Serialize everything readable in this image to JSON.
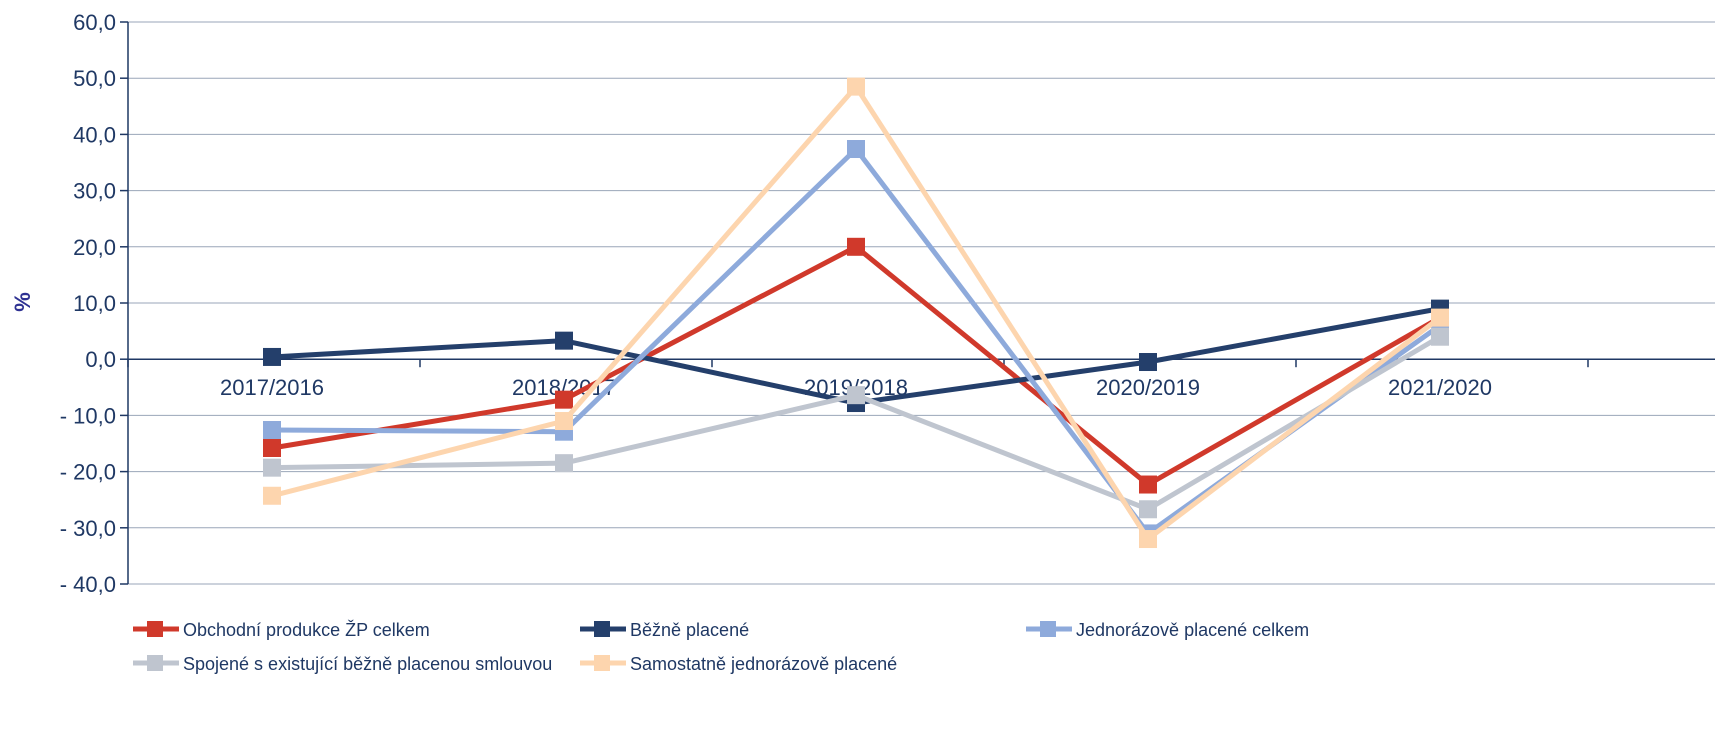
{
  "chart_data": {
    "type": "line",
    "title": "",
    "xlabel": "",
    "ylabel": "%",
    "ylim": [
      -40,
      60
    ],
    "yticks": [
      60,
      50,
      40,
      30,
      20,
      10,
      0,
      -10,
      -20,
      -30,
      -40
    ],
    "ytick_labels": [
      "60,0",
      "50,0",
      "40,0",
      "30,0",
      "20,0",
      "10,0",
      "0,0",
      "- 10,0",
      "- 20,0",
      "- 30,0",
      "- 40,0"
    ],
    "categories": [
      "2017/2016",
      "2018/2017",
      "2019/2018",
      "2020/2019",
      "2021/2020"
    ],
    "grid": true,
    "legend_position": "bottom",
    "series": [
      {
        "name": "Obchodní produkce ŽP celkem",
        "color": "#d0392b",
        "values": [
          -15.8,
          -7.2,
          20.0,
          -22.3,
          7.4
        ]
      },
      {
        "name": "Běžně placené",
        "color": "#243f6b",
        "values": [
          0.4,
          3.3,
          -7.8,
          -0.5,
          9.0
        ]
      },
      {
        "name": "Jednorázově placené celkem",
        "color": "#8eaadb",
        "values": [
          -12.6,
          -12.9,
          37.4,
          -31.0,
          6.0
        ]
      },
      {
        "name": "Spojené s existující běžně placenou smlouvou",
        "color": "#bfc5cf",
        "values": [
          -19.3,
          -18.5,
          -6.4,
          -26.7,
          4.0
        ]
      },
      {
        "name": "Samostatně jednorázově placené",
        "color": "#fdd5ae",
        "values": [
          -24.3,
          -11.0,
          48.5,
          -32.0,
          7.4
        ]
      }
    ]
  }
}
